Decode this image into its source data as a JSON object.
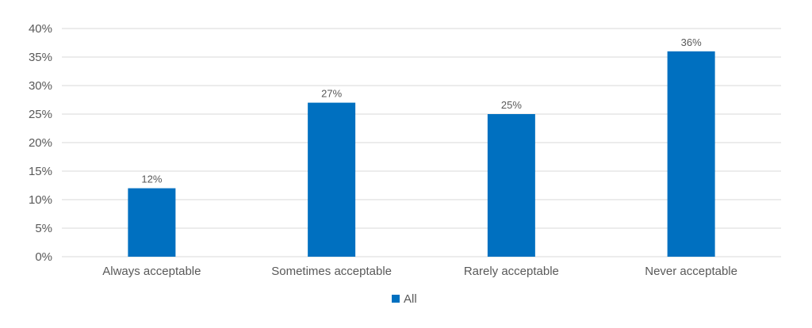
{
  "chart_data": {
    "type": "bar",
    "categories": [
      "Always acceptable",
      "Sometimes acceptable",
      "Rarely acceptable",
      "Never acceptable"
    ],
    "series": [
      {
        "name": "All",
        "values": [
          12,
          27,
          25,
          36
        ],
        "color": "#0070c0"
      }
    ],
    "data_labels": [
      "12%",
      "27%",
      "25%",
      "36%"
    ],
    "y_ticks": [
      0,
      5,
      10,
      15,
      20,
      25,
      30,
      35,
      40
    ],
    "y_tick_labels": [
      "0%",
      "5%",
      "10%",
      "15%",
      "20%",
      "25%",
      "30%",
      "35%",
      "40%"
    ],
    "ylim": [
      0,
      40
    ],
    "grid": true,
    "legend_position": "bottom",
    "title": "",
    "xlabel": "",
    "ylabel": ""
  }
}
